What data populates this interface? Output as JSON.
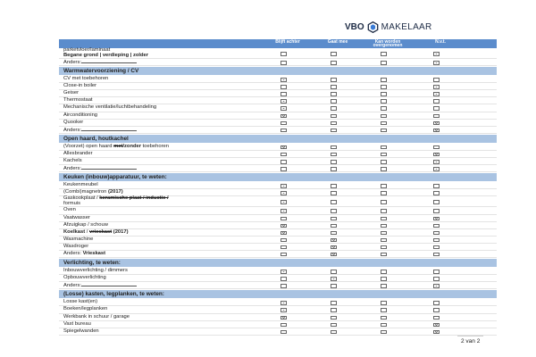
{
  "logo": {
    "left": "VBO",
    "right": "MAKELAAR"
  },
  "columns": [
    "Blijft achter",
    "Gaat mee",
    "Kan worden overgenomen",
    "N.v.t."
  ],
  "rows": [
    {
      "type": "item",
      "tall": true,
      "parts": [
        {
          "t": "parketvloer/laminaat"
        },
        {
          "t": "\n"
        },
        {
          "t": "Begane grond | verdieping | zolder",
          "b": true
        }
      ],
      "check": 3
    },
    {
      "type": "item",
      "parts": [
        {
          "t": "Anders:"
        }
      ],
      "line": true,
      "check": 3
    },
    {
      "type": "section",
      "title": "Warmwatervoorziening / CV"
    },
    {
      "type": "item",
      "parts": [
        {
          "t": "CV met toebehoren"
        }
      ],
      "check": 0
    },
    {
      "type": "item",
      "parts": [
        {
          "t": "Close-in boiler"
        }
      ],
      "check": 3
    },
    {
      "type": "item",
      "parts": [
        {
          "t": "Geiser"
        }
      ],
      "check": 3
    },
    {
      "type": "item",
      "parts": [
        {
          "t": "Thermostaat"
        }
      ],
      "check": 0
    },
    {
      "type": "item",
      "parts": [
        {
          "t": "Mechanische ventilatie/luchtbehandeling"
        }
      ],
      "check": 0
    },
    {
      "type": "item",
      "parts": [
        {
          "t": "Airconditioning"
        }
      ],
      "check": 0
    },
    {
      "type": "item",
      "parts": [
        {
          "t": "Quooker"
        }
      ],
      "check": 3
    },
    {
      "type": "item",
      "parts": [
        {
          "t": "Anders:"
        }
      ],
      "line": true,
      "check": 3
    },
    {
      "type": "section",
      "title": "Open haard, houtkachel"
    },
    {
      "type": "item",
      "parts": [
        {
          "t": "(Voorzet) open haard "
        },
        {
          "t": "met",
          "b": true,
          "s": true
        },
        {
          "t": "/zonder",
          "b": true
        },
        {
          "t": " toebehoren"
        }
      ],
      "check": 0
    },
    {
      "type": "item",
      "parts": [
        {
          "t": "Allesbrander"
        }
      ],
      "check": 3
    },
    {
      "type": "item",
      "parts": [
        {
          "t": "Kachels"
        }
      ],
      "check": 3
    },
    {
      "type": "item",
      "parts": [
        {
          "t": "Anders:"
        }
      ],
      "line": true,
      "check": 3
    },
    {
      "type": "section",
      "title": "Keuken (inbouw)apparatuur, te weten:"
    },
    {
      "type": "item",
      "parts": [
        {
          "t": "Keukenmeubel"
        }
      ],
      "check": 0
    },
    {
      "type": "item",
      "parts": [
        {
          "t": "(Combi)magnetron "
        },
        {
          "t": "(2017)",
          "b": true
        }
      ],
      "check": 0
    },
    {
      "type": "item",
      "tall": true,
      "parts": [
        {
          "t": "Gaskookplaat / "
        },
        {
          "t": "keramische plaat / inductie /",
          "b": true,
          "s": true
        },
        {
          "t": "\n"
        },
        {
          "t": "formuis"
        }
      ],
      "check": 0
    },
    {
      "type": "item",
      "parts": [
        {
          "t": "Oven"
        }
      ],
      "check": 0
    },
    {
      "type": "item",
      "parts": [
        {
          "t": "Vaatwasser"
        }
      ],
      "check": 3
    },
    {
      "type": "item",
      "parts": [
        {
          "t": "Afzuigkap / schouw"
        }
      ],
      "check": 0
    },
    {
      "type": "item",
      "parts": [
        {
          "t": "Koelkast",
          "b": true
        },
        {
          "t": " / "
        },
        {
          "t": "vrieskast",
          "b": true,
          "s": true
        },
        {
          "t": " (2017)",
          "b": true
        }
      ],
      "check": 0
    },
    {
      "type": "item",
      "parts": [
        {
          "t": "Wasmachine"
        }
      ],
      "check": 1
    },
    {
      "type": "item",
      "parts": [
        {
          "t": "Wasdroger"
        }
      ],
      "check": 1
    },
    {
      "type": "item",
      "parts": [
        {
          "t": "Anders: "
        },
        {
          "t": "Vrieskast",
          "b": true
        }
      ],
      "check": 1
    },
    {
      "type": "section",
      "title": "Verlichting, te weten:"
    },
    {
      "type": "item",
      "parts": [
        {
          "t": "Inbouwverlichting / dimmers"
        }
      ],
      "check": 0
    },
    {
      "type": "item",
      "parts": [
        {
          "t": "Opbouwverlichting"
        }
      ],
      "check": 1
    },
    {
      "type": "item",
      "parts": [
        {
          "t": "Anders:"
        }
      ],
      "line": true,
      "check": 3
    },
    {
      "type": "section",
      "title": "(Losse) kasten, legplanken, te weten:"
    },
    {
      "type": "item",
      "parts": [
        {
          "t": "Losse kast(en)"
        }
      ],
      "check": 0
    },
    {
      "type": "item",
      "parts": [
        {
          "t": "Boeken/legplanken"
        }
      ],
      "check": 0
    },
    {
      "type": "item",
      "parts": [
        {
          "t": "Werkbank in schuur / garage"
        }
      ],
      "check": 0
    },
    {
      "type": "item",
      "parts": [
        {
          "t": "Vast bureau"
        }
      ],
      "check": 3
    },
    {
      "type": "item",
      "parts": [
        {
          "t": "Spiegelwanden"
        }
      ],
      "check": 3
    }
  ],
  "footer": {
    "page": "2 van 2"
  }
}
